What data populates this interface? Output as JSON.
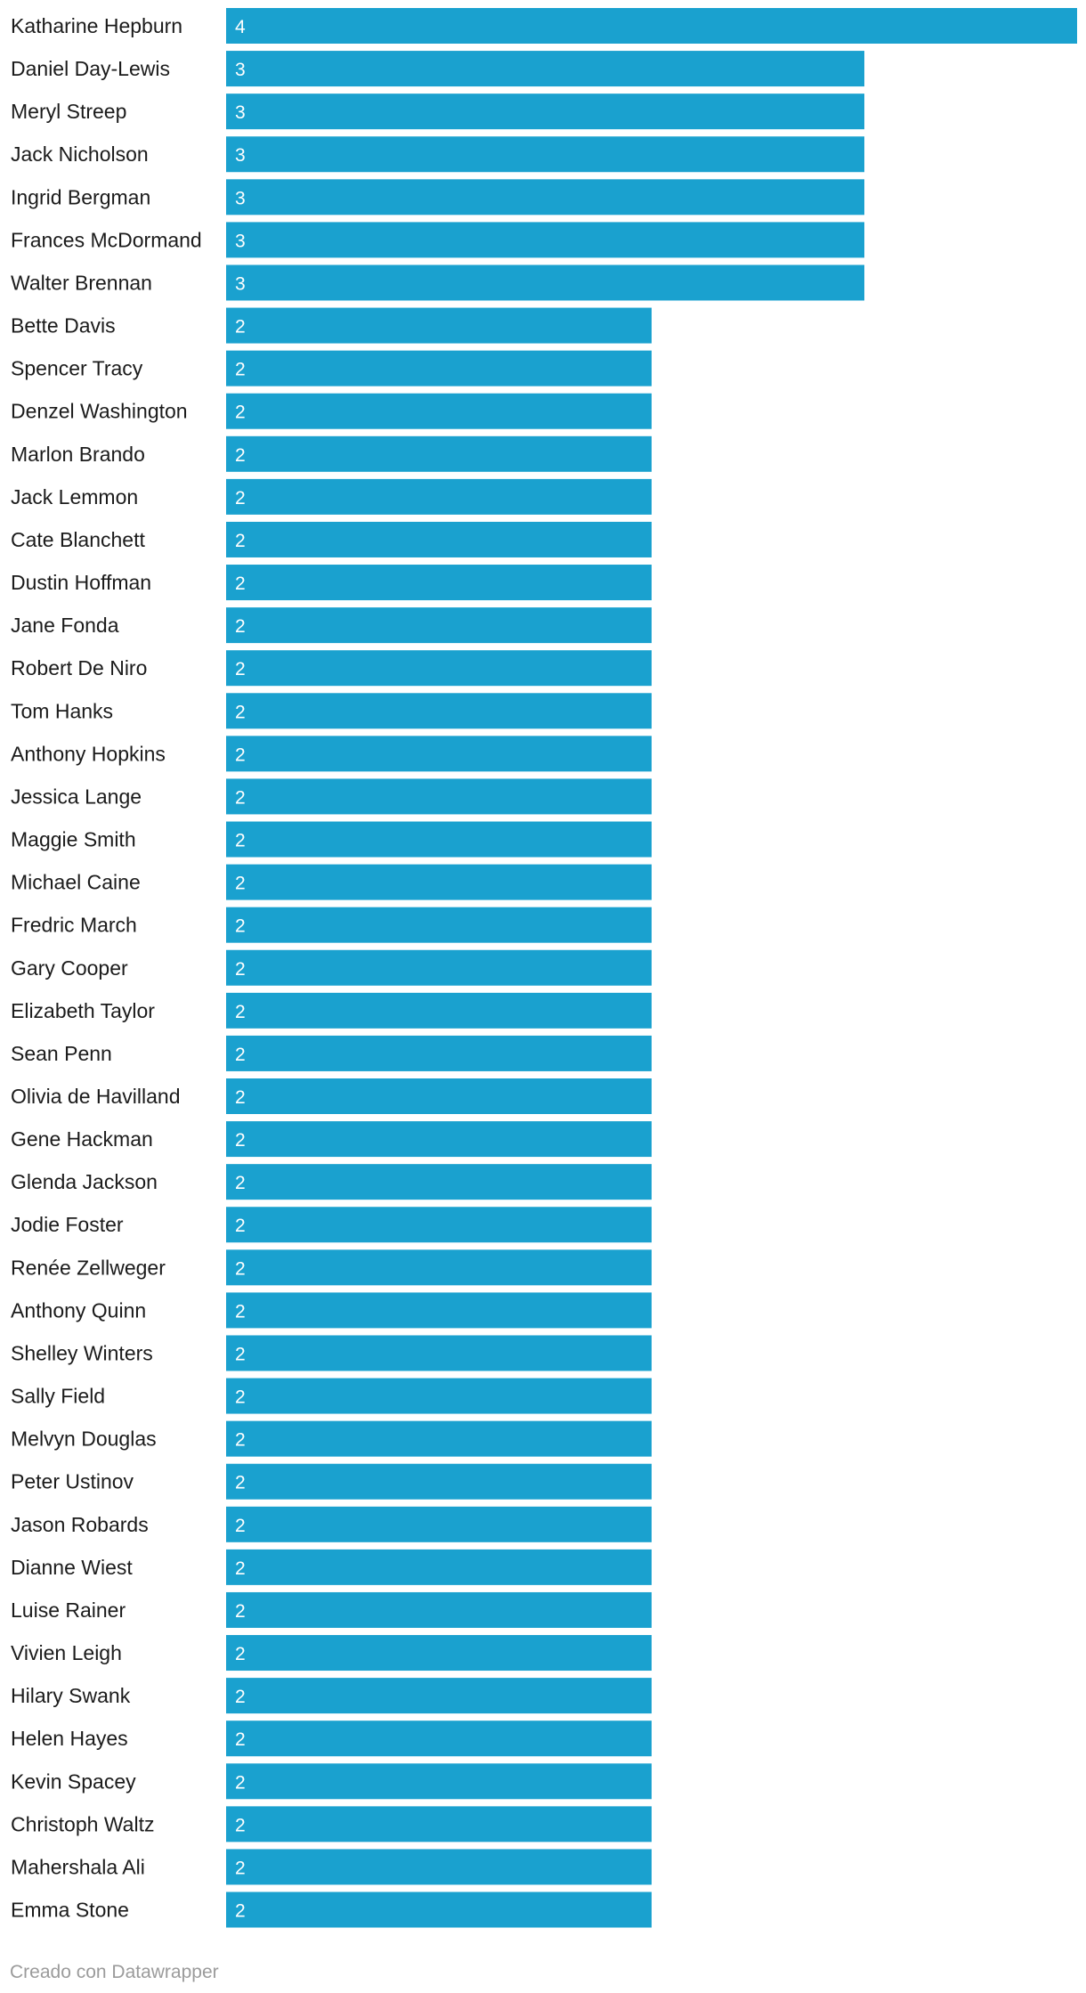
{
  "chart_data": {
    "type": "bar",
    "orientation": "horizontal",
    "categories": [
      "Katharine Hepburn",
      "Daniel Day-Lewis",
      "Meryl Streep",
      "Jack Nicholson",
      "Ingrid Bergman",
      "Frances McDormand",
      "Walter Brennan",
      "Bette Davis",
      "Spencer Tracy",
      "Denzel Washington",
      "Marlon Brando",
      "Jack Lemmon",
      "Cate Blanchett",
      "Dustin Hoffman",
      "Jane Fonda",
      "Robert De Niro",
      "Tom Hanks",
      "Anthony Hopkins",
      "Jessica Lange",
      "Maggie Smith",
      "Michael Caine",
      "Fredric March",
      "Gary Cooper",
      "Elizabeth Taylor",
      "Sean Penn",
      "Olivia de Havilland",
      "Gene Hackman",
      "Glenda Jackson",
      "Jodie Foster",
      "Renée Zellweger",
      "Anthony Quinn",
      "Shelley Winters",
      "Sally Field",
      "Melvyn Douglas",
      "Peter Ustinov",
      "Jason Robards",
      "Dianne Wiest",
      "Luise Rainer",
      "Vivien Leigh",
      "Hilary Swank",
      "Helen Hayes",
      "Kevin Spacey",
      "Christoph Waltz",
      "Mahershala Ali",
      "Emma Stone"
    ],
    "values": [
      4,
      3,
      3,
      3,
      3,
      3,
      3,
      2,
      2,
      2,
      2,
      2,
      2,
      2,
      2,
      2,
      2,
      2,
      2,
      2,
      2,
      2,
      2,
      2,
      2,
      2,
      2,
      2,
      2,
      2,
      2,
      2,
      2,
      2,
      2,
      2,
      2,
      2,
      2,
      2,
      2,
      2,
      2,
      2,
      2
    ],
    "xlim": [
      0,
      4
    ],
    "bar_color": "#1aa1cf",
    "value_label_color": "#ffffff",
    "grid": false,
    "legend": "none"
  },
  "footer": {
    "credit": "Creado con Datawrapper"
  }
}
